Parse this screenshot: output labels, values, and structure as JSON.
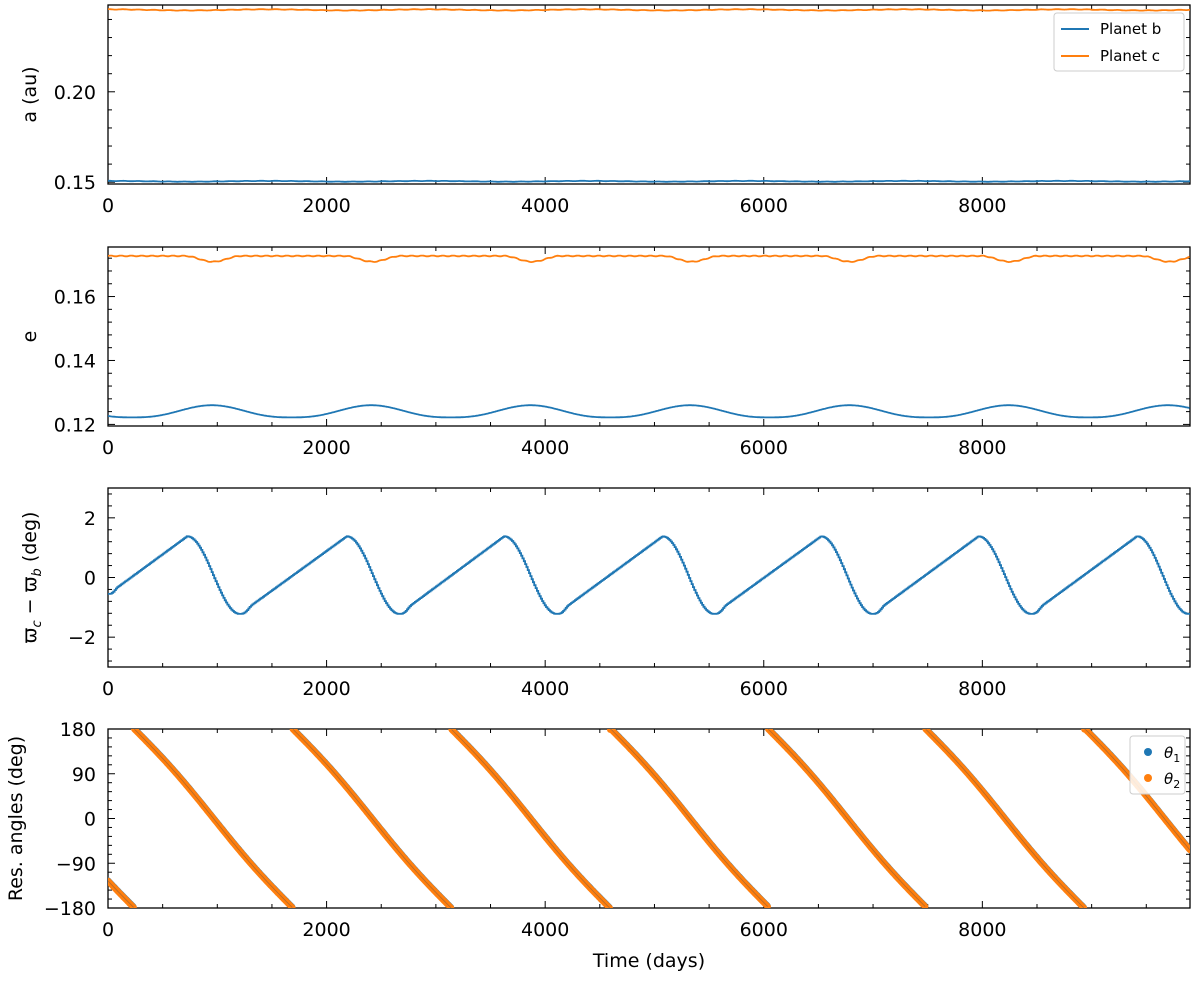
{
  "figure": {
    "xlabel": "Time (days)",
    "colors": {
      "planet_b": "#1f77b4",
      "planet_c": "#ff7f0e"
    }
  },
  "chart_data": [
    {
      "type": "line",
      "panel": "semi-major axis",
      "ylabel": "a (au)",
      "xlim": [
        0,
        9900
      ],
      "ylim": [
        0.149,
        0.248
      ],
      "xticks": [
        0,
        2000,
        4000,
        6000,
        8000
      ],
      "xtick_labels": [
        "0",
        "2000",
        "4000",
        "6000",
        "8000"
      ],
      "yticks": [
        0.15,
        0.2
      ],
      "ytick_labels": [
        "0.15",
        "0.20"
      ],
      "legend": {
        "placement": "top-right",
        "entries": [
          "Planet b",
          "Planet c"
        ]
      },
      "series": [
        {
          "name": "Planet b",
          "color": "#1f77b4",
          "mean": 0.1505,
          "amplitude": 0.0002,
          "period": 1460
        },
        {
          "name": "Planet c",
          "color": "#ff7f0e",
          "mean": 0.2453,
          "amplitude": 0.0003,
          "period": 1460
        }
      ]
    },
    {
      "type": "line",
      "panel": "eccentricity",
      "ylabel": "e",
      "xlim": [
        0,
        9900
      ],
      "ylim": [
        0.1195,
        0.1755
      ],
      "xticks": [
        0,
        2000,
        4000,
        6000,
        8000
      ],
      "xtick_labels": [
        "0",
        "2000",
        "4000",
        "6000",
        "8000"
      ],
      "yticks": [
        0.12,
        0.14,
        0.16
      ],
      "ytick_labels": [
        "0.12",
        "0.14",
        "0.16"
      ],
      "series": [
        {
          "name": "Planet b",
          "color": "#1f77b4",
          "min": 0.1222,
          "max": 0.126,
          "peak_times": [
            950,
            2410,
            3870,
            5330,
            6780,
            8240,
            9700
          ],
          "period": 1458
        },
        {
          "name": "Planet c",
          "color": "#ff7f0e",
          "max": 0.1727,
          "min": 0.1709,
          "dip_times": [
            960,
            2420,
            3880,
            5340,
            6790,
            8250,
            9710
          ],
          "period": 1458
        }
      ]
    },
    {
      "type": "line",
      "panel": "apsidal difference",
      "ylabel": "ϖ_c − ϖ_b (deg)",
      "ylabel_parts": {
        "a": "ϖ",
        "a_sub": "c",
        "minus": " − ",
        "b": "ϖ",
        "b_sub": "b",
        "unit": " (deg)"
      },
      "xlim": [
        0,
        9900
      ],
      "ylim": [
        -3,
        3
      ],
      "xticks": [
        0,
        2000,
        4000,
        6000,
        8000
      ],
      "xtick_labels": [
        "0",
        "2000",
        "4000",
        "6000",
        "8000"
      ],
      "yticks": [
        -2,
        0,
        2
      ],
      "ytick_labels": [
        "−2",
        "0",
        "2"
      ],
      "series": [
        {
          "name": "",
          "color": "#1f77b4",
          "max": 1.38,
          "min": -1.22,
          "peak_times": [
            720,
            2180,
            3620,
            5070,
            6520,
            7960,
            9410
          ],
          "trough_times": [
            1200,
            2660,
            4100,
            5540,
            6990,
            8440,
            9880
          ],
          "start_value": -0.55
        }
      ]
    },
    {
      "type": "scatter",
      "panel": "resonant angles",
      "ylabel": "Res. angles (deg)",
      "xlabel": "Time (days)",
      "xlim": [
        0,
        9900
      ],
      "ylim": [
        -180,
        180
      ],
      "xticks": [
        0,
        2000,
        4000,
        6000,
        8000
      ],
      "xtick_labels": [
        "0",
        "2000",
        "4000",
        "6000",
        "8000"
      ],
      "yticks": [
        -180,
        -90,
        0,
        90,
        180
      ],
      "ytick_labels": [
        "−180",
        "−90",
        "0",
        "90",
        "180"
      ],
      "legend": {
        "placement": "top-right",
        "entries": [
          "θ1",
          "θ2"
        ]
      },
      "wrap_crossings_at_180": [
        240,
        1690,
        3140,
        4600,
        6040,
        7480,
        8940
      ],
      "series": [
        {
          "name": "θ1",
          "label_base": "θ",
          "label_sub": "1",
          "color": "#1f77b4"
        },
        {
          "name": "θ2",
          "label_base": "θ",
          "label_sub": "2",
          "color": "#ff7f0e"
        }
      ]
    }
  ]
}
